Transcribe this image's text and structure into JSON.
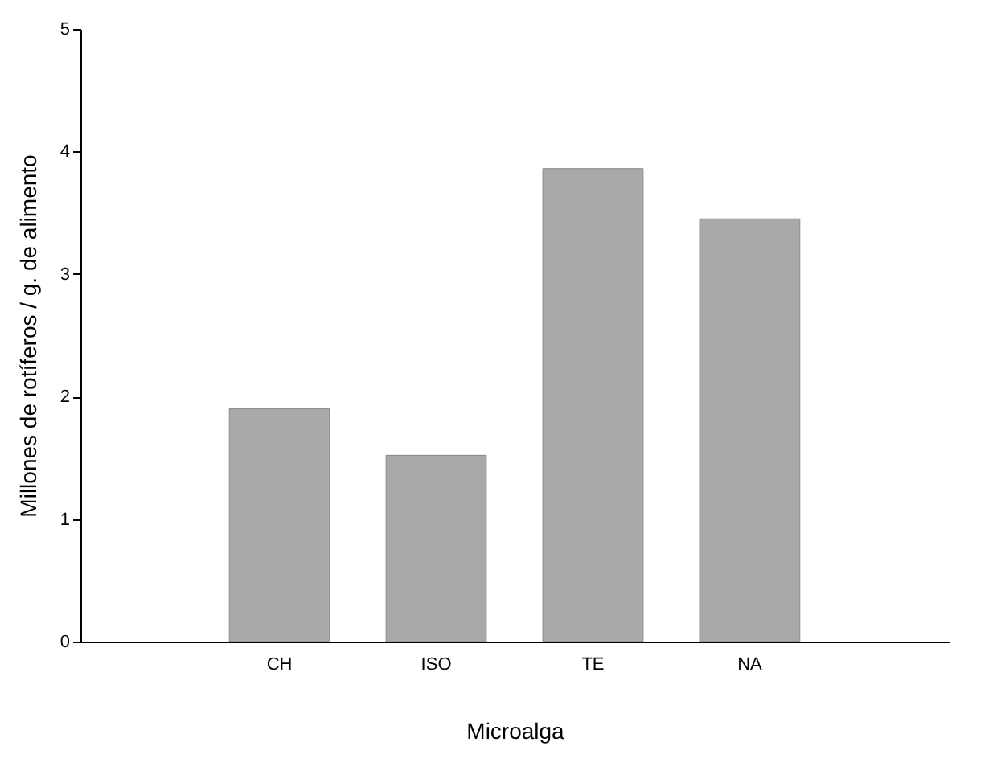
{
  "chart_data": {
    "type": "bar",
    "xlabel": "Microalga",
    "ylabel": "Millones de rotíferos / g. de alimento",
    "categories": [
      "CH",
      "ISO",
      "TE",
      "NA"
    ],
    "values": [
      1.9,
      1.52,
      3.86,
      3.45
    ],
    "color": "#a9a9a9",
    "ylim": [
      0,
      5
    ],
    "yticks": [
      0,
      1,
      2,
      3,
      4,
      5
    ],
    "grid": false
  }
}
